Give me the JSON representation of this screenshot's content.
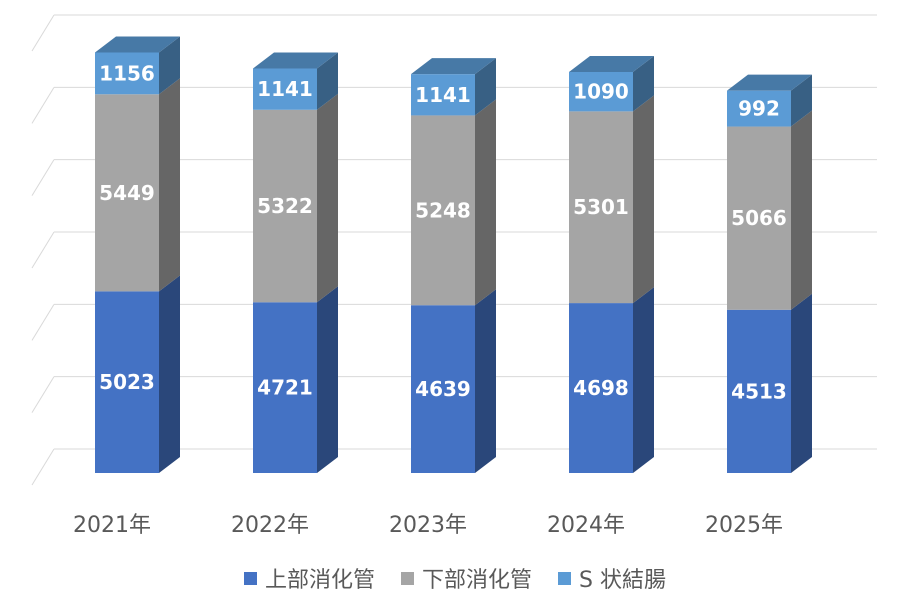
{
  "chart_data": {
    "type": "bar",
    "stacked": true,
    "style": "3d-column",
    "categories": [
      "2021年",
      "2022年",
      "2023年",
      "2024年",
      "2025年"
    ],
    "series": [
      {
        "name": "上部消化管",
        "values": [
          5023,
          4721,
          4639,
          4698,
          4513
        ],
        "color": "#4472C4"
      },
      {
        "name": "下部消化管",
        "values": [
          5449,
          5322,
          5248,
          5301,
          5066
        ],
        "color": "#A5A5A5"
      },
      {
        "name": "S 状結腸",
        "values": [
          1156,
          1141,
          1141,
          1090,
          992
        ],
        "color": "#5B9BD5"
      }
    ],
    "ylim": [
      0,
      12000
    ],
    "grid": true,
    "legend_position": "bottom",
    "data_labels": true
  }
}
